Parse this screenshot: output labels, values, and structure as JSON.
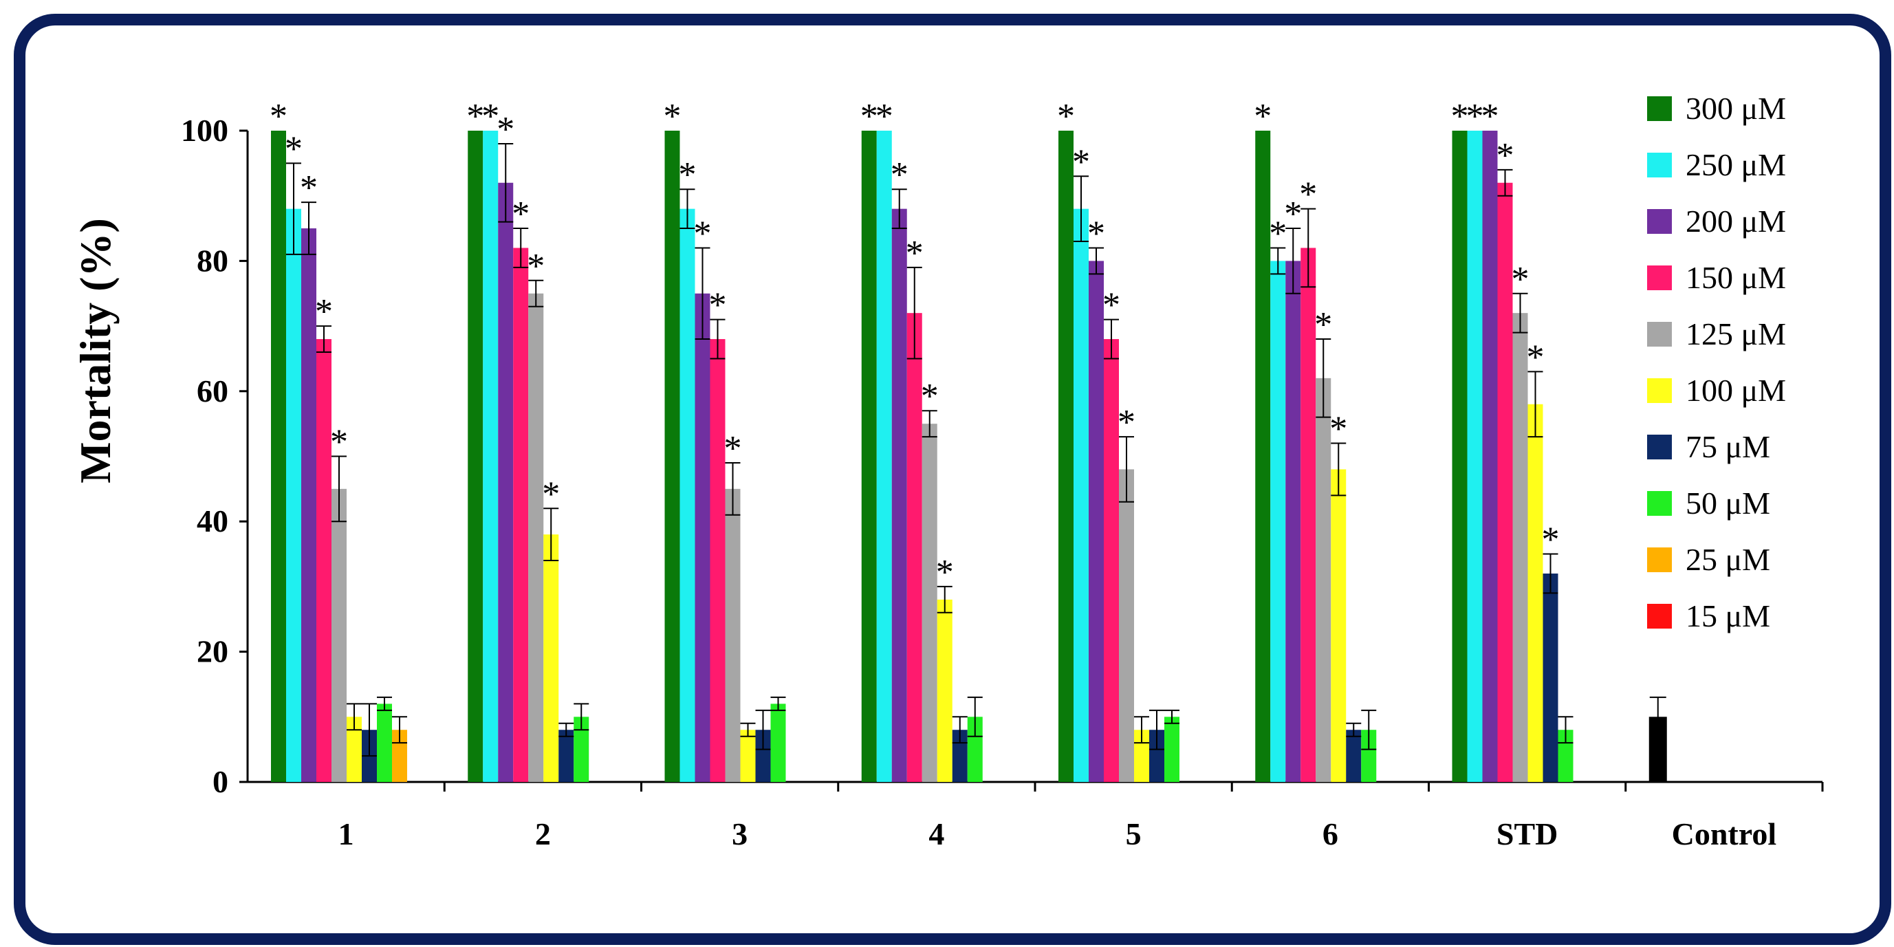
{
  "chart_data": {
    "type": "bar",
    "title": "",
    "xlabel": "",
    "ylabel": "Mortality (%)",
    "ylim": [
      0,
      100
    ],
    "yticks": [
      "0",
      "20",
      "40",
      "60",
      "80",
      "100"
    ],
    "categories": [
      "1",
      "2",
      "3",
      "4",
      "5",
      "6",
      "STD",
      "Control"
    ],
    "legend_position": "right",
    "grid": false,
    "series": [
      {
        "name": "300 μM",
        "color": "#0a7a0a",
        "values": [
          100,
          100,
          100,
          100,
          100,
          100,
          100,
          null
        ],
        "errors": [
          0,
          0,
          0,
          0,
          0,
          0,
          0,
          null
        ],
        "sig": [
          true,
          true,
          true,
          true,
          true,
          true,
          true,
          false
        ]
      },
      {
        "name": "250 μM",
        "color": "#1ff0f0",
        "values": [
          88,
          100,
          88,
          100,
          88,
          80,
          100,
          null
        ],
        "errors": [
          7,
          0,
          3,
          0,
          5,
          2,
          0,
          null
        ],
        "sig": [
          true,
          true,
          true,
          true,
          true,
          true,
          true,
          false
        ]
      },
      {
        "name": "200 μM",
        "color": "#7030a0",
        "values": [
          85,
          92,
          75,
          88,
          80,
          80,
          100,
          null
        ],
        "errors": [
          4,
          6,
          7,
          3,
          2,
          5,
          0,
          null
        ],
        "sig": [
          true,
          true,
          true,
          true,
          true,
          true,
          true,
          false
        ]
      },
      {
        "name": "150 μM",
        "color": "#ff1a6e",
        "values": [
          68,
          82,
          68,
          72,
          68,
          82,
          92,
          null
        ],
        "errors": [
          2,
          3,
          3,
          7,
          3,
          6,
          2,
          null
        ],
        "sig": [
          true,
          true,
          true,
          true,
          true,
          true,
          true,
          false
        ]
      },
      {
        "name": "125 μM",
        "color": "#a6a6a6",
        "values": [
          45,
          75,
          45,
          55,
          48,
          62,
          72,
          null
        ],
        "errors": [
          5,
          2,
          4,
          2,
          5,
          6,
          3,
          null
        ],
        "sig": [
          true,
          true,
          true,
          true,
          true,
          true,
          true,
          false
        ]
      },
      {
        "name": "100 μM",
        "color": "#ffff1a",
        "values": [
          10,
          38,
          8,
          28,
          8,
          48,
          58,
          null
        ],
        "errors": [
          2,
          4,
          1,
          2,
          2,
          4,
          5,
          null
        ],
        "sig": [
          false,
          true,
          false,
          true,
          false,
          true,
          true,
          false
        ]
      },
      {
        "name": "75 μM",
        "color": "#0d2a66",
        "values": [
          8,
          8,
          8,
          8,
          8,
          8,
          32,
          null
        ],
        "errors": [
          4,
          1,
          3,
          2,
          3,
          1,
          3,
          null
        ],
        "sig": [
          false,
          false,
          false,
          false,
          false,
          false,
          true,
          false
        ]
      },
      {
        "name": "50 μM",
        "color": "#22ee22",
        "values": [
          12,
          10,
          12,
          10,
          10,
          8,
          8,
          null
        ],
        "errors": [
          1,
          2,
          1,
          3,
          1,
          3,
          2,
          null
        ],
        "sig": [
          false,
          false,
          false,
          false,
          false,
          false,
          false,
          false
        ]
      },
      {
        "name": "25 μM",
        "color": "#ffb000",
        "values": [
          8,
          null,
          null,
          null,
          null,
          null,
          null,
          null
        ],
        "errors": [
          2,
          null,
          null,
          null,
          null,
          null,
          null,
          null
        ],
        "sig": [
          false,
          false,
          false,
          false,
          false,
          false,
          false,
          false
        ]
      },
      {
        "name": "15 μM",
        "color": "#ff1010",
        "values": [
          null,
          null,
          null,
          null,
          null,
          null,
          null,
          null
        ],
        "errors": [
          null,
          null,
          null,
          null,
          null,
          null,
          null,
          null
        ],
        "sig": [
          false,
          false,
          false,
          false,
          false,
          false,
          false,
          false
        ]
      }
    ],
    "control": {
      "value": 10,
      "error": 3,
      "color": "#000000"
    },
    "significance_marker": "*"
  }
}
